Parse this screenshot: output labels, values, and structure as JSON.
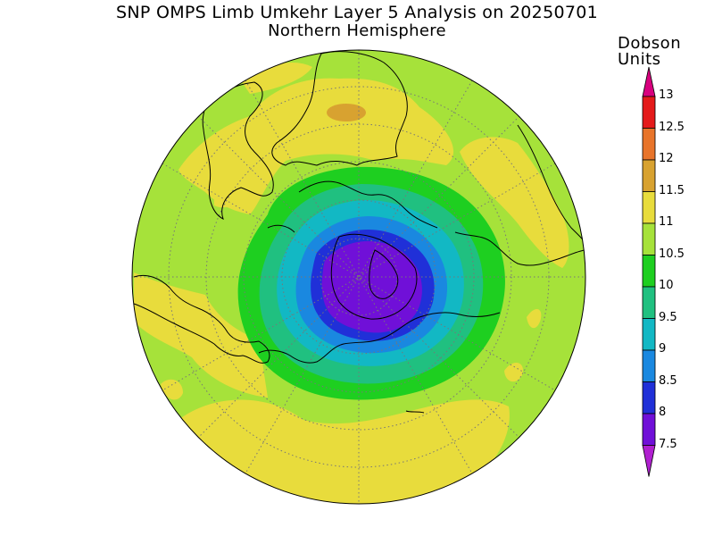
{
  "title": "SNP OMPS Limb Umkehr Layer 5 Analysis on 20250701",
  "subtitle": "Northern Hemisphere",
  "colorbar": {
    "units_line1": "Dobson",
    "units_line2": "Units",
    "levels": [
      "13",
      "12.5",
      "12",
      "11.5",
      "11",
      "10.5",
      "10",
      "9.5",
      "9",
      "8.5",
      "8",
      "7.5"
    ],
    "colors": [
      "#d8007e",
      "#e41a1a",
      "#e8742a",
      "#d8a230",
      "#e8dc3c",
      "#a6e23a",
      "#1ecf20",
      "#20c080",
      "#12b8c4",
      "#1a88e0",
      "#2030d8",
      "#7010d8",
      "#b020d0"
    ]
  },
  "map": {
    "projection": "north polar stereographic",
    "ozone_range_du": [
      7.5,
      13
    ],
    "pole_min_du": 7.5,
    "max_du": 11.75
  }
}
